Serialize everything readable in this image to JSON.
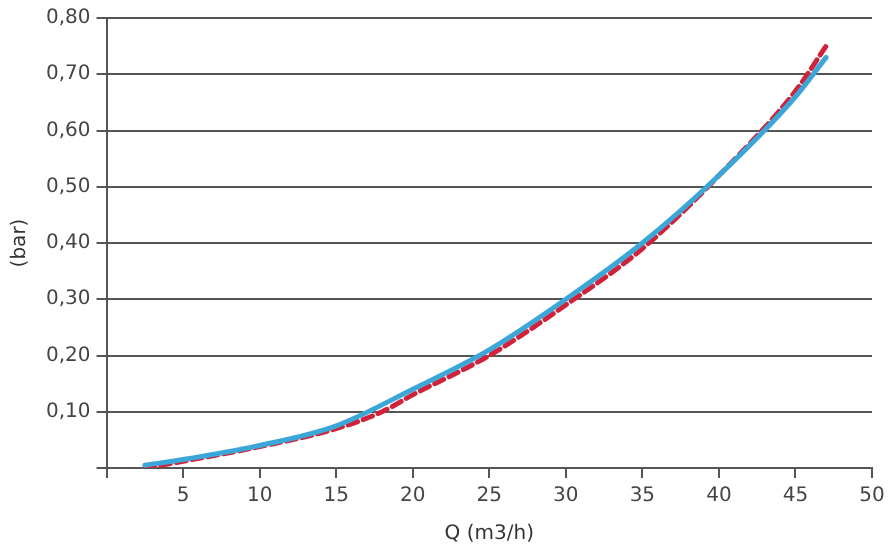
{
  "chart_data": {
    "type": "line",
    "xlabel": "Q (m3/h)",
    "ylabel": "(bar)",
    "xlim": [
      0,
      50
    ],
    "xticks": [
      {
        "value": 0,
        "label": null
      },
      5,
      10,
      15,
      20,
      25,
      30,
      35,
      40,
      45,
      50
    ],
    "ylim": [
      0,
      0.8
    ],
    "yticks": [
      {
        "value": 0,
        "label": null
      },
      {
        "value": 0.1,
        "label": "0,10"
      },
      {
        "value": 0.2,
        "label": "0,20"
      },
      {
        "value": 0.3,
        "label": "0,30"
      },
      {
        "value": 0.4,
        "label": "0,40"
      },
      {
        "value": 0.5,
        "label": "0,50"
      },
      {
        "value": 0.6,
        "label": "0,60"
      },
      {
        "value": 0.7,
        "label": "0,70"
      },
      {
        "value": 0.8,
        "label": "0,80"
      }
    ],
    "grid": "y",
    "legend": false,
    "marker": "none",
    "series": [
      {
        "color": "#3aa7d8",
        "line_style": "solid",
        "x": [
          2.5,
          5,
          10,
          15,
          20,
          25,
          30,
          35,
          40,
          45,
          47
        ],
        "values": [
          0.005,
          0.015,
          0.04,
          0.075,
          0.14,
          0.21,
          0.3,
          0.4,
          0.52,
          0.66,
          0.73
        ]
      },
      {
        "color": "#d0223a",
        "line_style": "dashed",
        "x": [
          2.5,
          5,
          10,
          15,
          18,
          20,
          25,
          30,
          35,
          40,
          45,
          47
        ],
        "values": [
          0.0,
          0.012,
          0.038,
          0.07,
          0.1,
          0.13,
          0.2,
          0.29,
          0.39,
          0.52,
          0.67,
          0.75
        ]
      }
    ]
  }
}
